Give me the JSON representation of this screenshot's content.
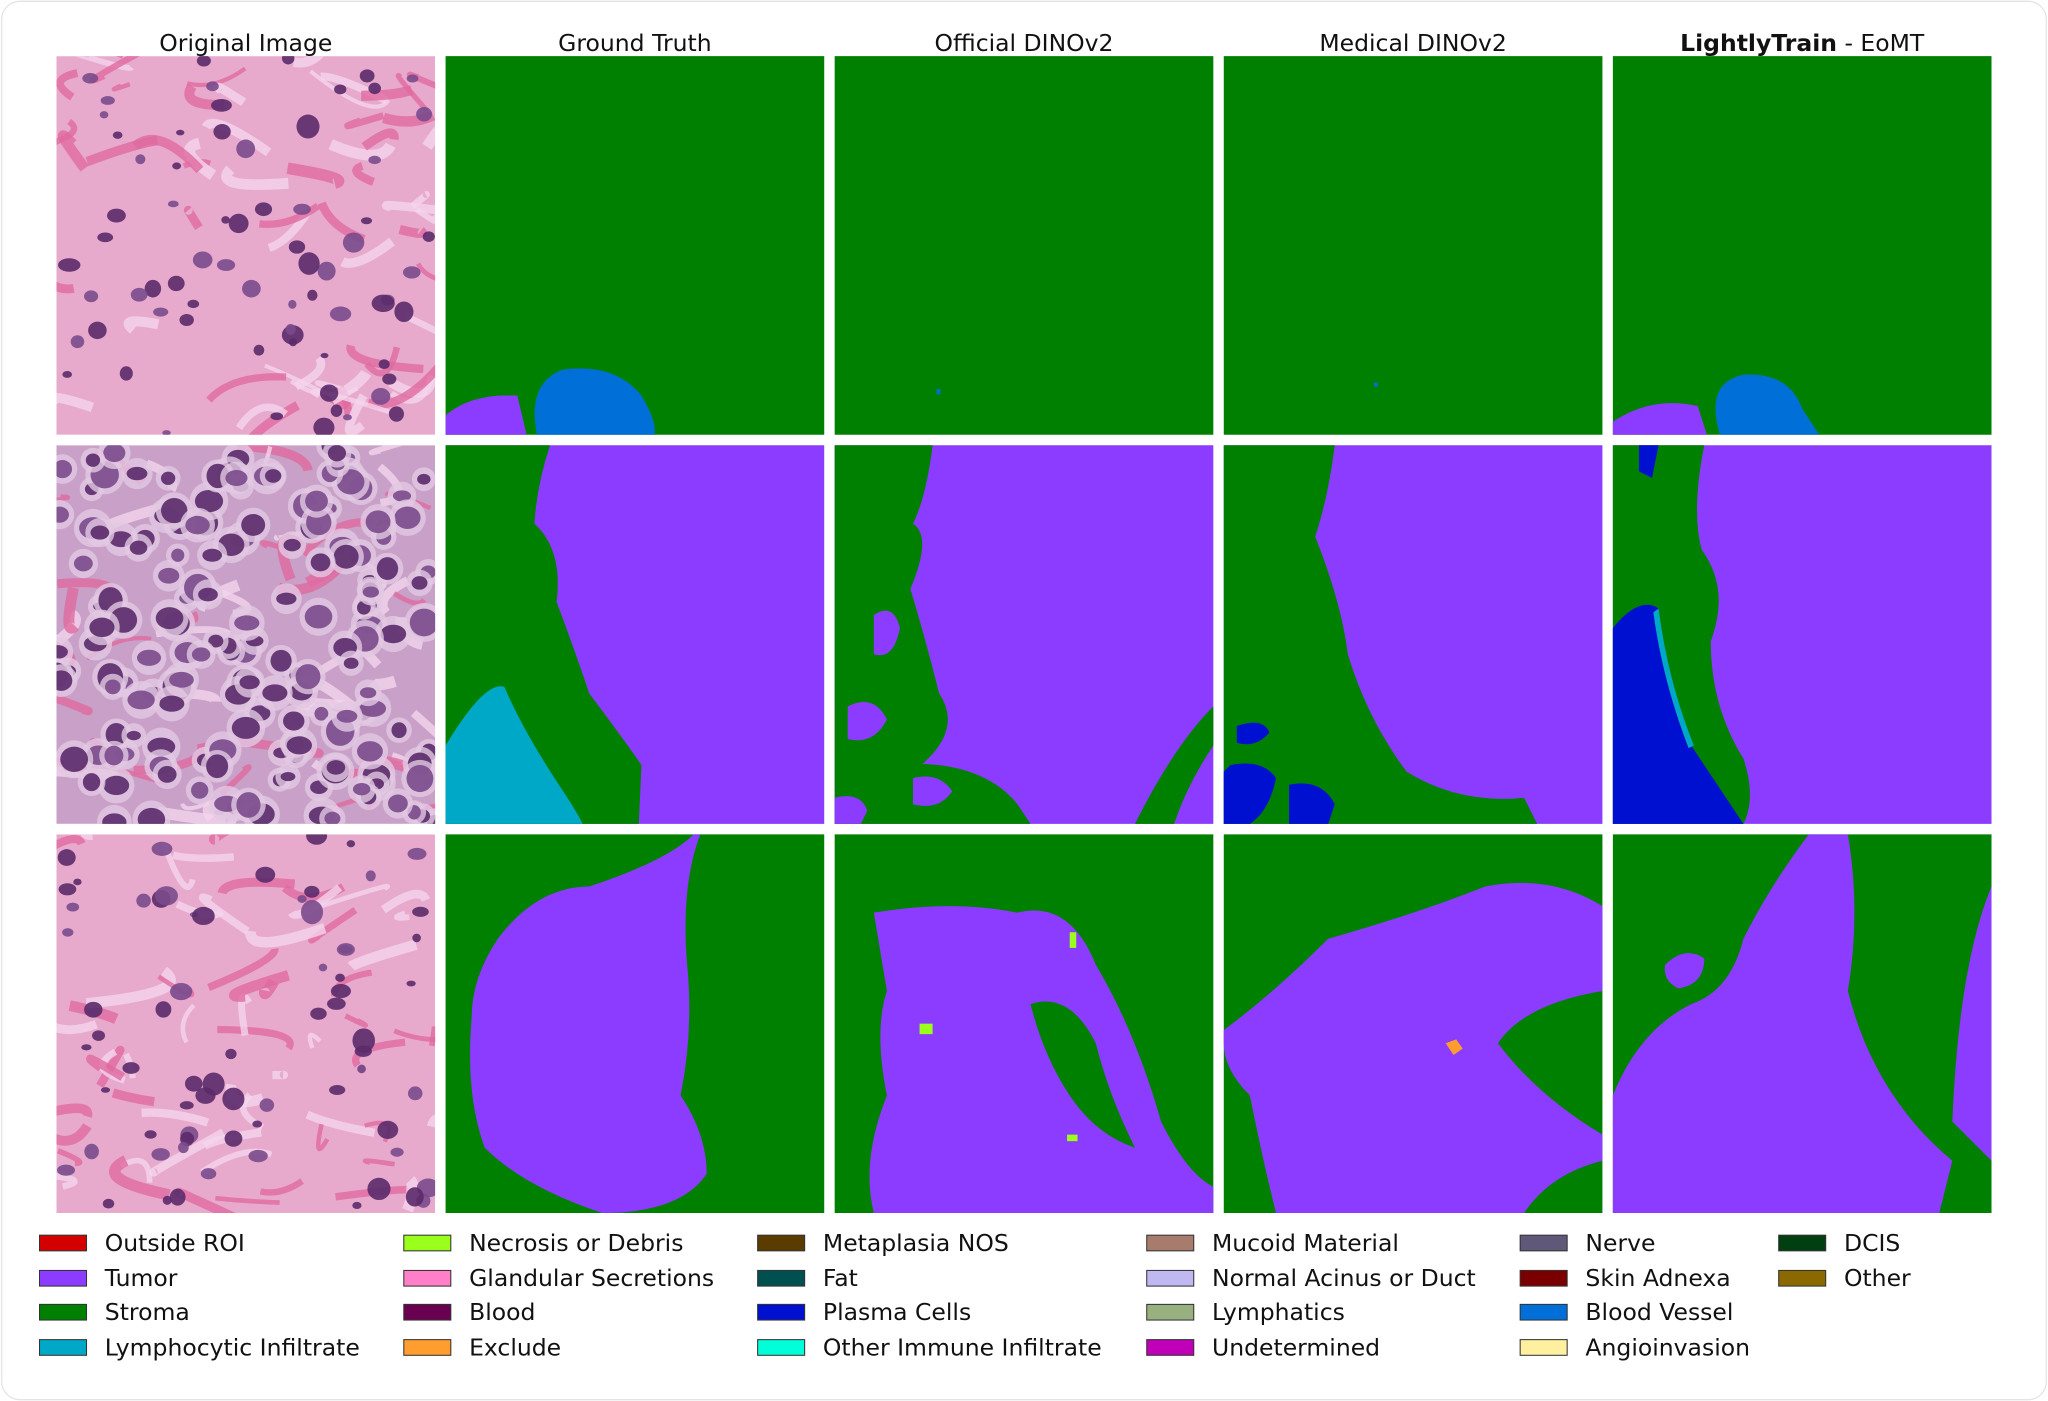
{
  "columns": [
    "Original Image",
    "Ground Truth",
    "Official DINOv2",
    "Medical DINOv2",
    {
      "bold": "LightlyTrain",
      "text": " - EoMT"
    }
  ],
  "legend": [
    {
      "label": "Outside ROI",
      "color": "#d40000"
    },
    {
      "label": "Tumor",
      "color": "#8c3cff"
    },
    {
      "label": "Stroma",
      "color": "#008000"
    },
    {
      "label": "Lymphocytic Infiltrate",
      "color": "#00a8c8"
    },
    {
      "label": "Necrosis or Debris",
      "color": "#9aff1a"
    },
    {
      "label": "Glandular Secretions",
      "color": "#ff80c8"
    },
    {
      "label": "Blood",
      "color": "#6a0050"
    },
    {
      "label": "Exclude",
      "color": "#ff9e2e"
    },
    {
      "label": "Metaplasia NOS",
      "color": "#5a3c00"
    },
    {
      "label": "Fat",
      "color": "#005050"
    },
    {
      "label": "Plasma Cells",
      "color": "#0010d0"
    },
    {
      "label": "Other Immune Infiltrate",
      "color": "#00ffd8"
    },
    {
      "label": "Mucoid Material",
      "color": "#a87c6c"
    },
    {
      "label": "Normal Acinus or Duct",
      "color": "#c0b8f0"
    },
    {
      "label": "Lymphatics",
      "color": "#98b080"
    },
    {
      "label": "Undetermined",
      "color": "#c000b8"
    },
    {
      "label": "Nerve",
      "color": "#605878"
    },
    {
      "label": "Skin Adnexa",
      "color": "#7a0000"
    },
    {
      "label": "Blood Vessel",
      "color": "#0070d8"
    },
    {
      "label": "Angioinvasion",
      "color": "#fff0a0"
    },
    {
      "label": "DCIS",
      "color": "#004010"
    },
    {
      "label": "Other",
      "color": "#8a6a00"
    }
  ]
}
